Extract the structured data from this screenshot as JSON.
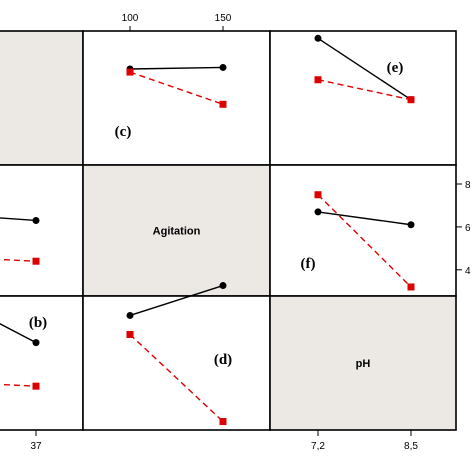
{
  "colors": {
    "background": "#ffffff",
    "panel_fill": "#ece8e3",
    "border": "#000000",
    "series_black": "#000000",
    "series_red": "#dd0000"
  },
  "chart_data": {
    "type": "line",
    "layout": "interaction-plot-matrix",
    "factors": [
      {
        "name": "",
        "levels": [
          "37"
        ],
        "diagonal_label": ""
      },
      {
        "name": "Agitation",
        "levels": [
          "100",
          "150"
        ],
        "diagonal_label": "Agitation"
      },
      {
        "name": "pH",
        "levels": [
          "7,2",
          "8,5"
        ],
        "diagonal_label": "pH"
      }
    ],
    "top_tick_labels": [
      "100",
      "150"
    ],
    "bottom_tick_labels": [
      "37",
      "7,2",
      "8,5"
    ],
    "right_tick_labels": [
      "8",
      "6",
      "4"
    ],
    "panels": [
      {
        "label": "(c)",
        "row": 0,
        "col": 1,
        "x_factor": "Agitation",
        "series": [
          {
            "color": "black",
            "marker": "circle",
            "values": [
              6.6,
              6.7
            ]
          },
          {
            "color": "red",
            "marker": "square",
            "values": [
              6.4,
              4.3
            ]
          }
        ],
        "ylim": [
          2.9,
          8.6
        ]
      },
      {
        "label": "(e)",
        "row": 0,
        "col": 2,
        "x_factor": "pH",
        "series": [
          {
            "color": "black",
            "marker": "circle",
            "values": [
              8.6,
              4.6
            ]
          },
          {
            "color": "red",
            "marker": "square",
            "values": [
              5.9,
              4.6
            ]
          }
        ],
        "ylim": [
          2.9,
          8.6
        ]
      },
      {
        "label": "",
        "row": 1,
        "col": 0,
        "x_factor": "",
        "series": [
          {
            "color": "black",
            "marker": "circle",
            "values": [
              6.3
            ]
          },
          {
            "color": "red",
            "marker": "square",
            "values": [
              4.4
            ]
          }
        ],
        "ylim": [
          2.9,
          8.6
        ]
      },
      {
        "label": "(f)",
        "row": 1,
        "col": 2,
        "x_factor": "pH",
        "series": [
          {
            "color": "black",
            "marker": "circle",
            "values": [
              6.7,
              6.1
            ]
          },
          {
            "color": "red",
            "marker": "square",
            "values": [
              7.5,
              3.2
            ]
          }
        ],
        "ylim": [
          2.9,
          8.6
        ]
      },
      {
        "label": "(b)",
        "row": 2,
        "col": 0,
        "x_factor": "",
        "series": [
          {
            "color": "black",
            "marker": "circle",
            "values": [
              5.2
            ]
          },
          {
            "color": "red",
            "marker": "square",
            "values": [
              3.6
            ]
          }
        ],
        "ylim": [
          2.9,
          8.6
        ]
      },
      {
        "label": "(d)",
        "row": 2,
        "col": 1,
        "x_factor": "Agitation",
        "series": [
          {
            "color": "black",
            "marker": "circle",
            "values": [
              6.2,
              7.3
            ]
          },
          {
            "color": "red",
            "marker": "square",
            "values": [
              5.5,
              2.3
            ]
          }
        ],
        "ylim": [
          1.9,
          8.6
        ]
      }
    ]
  }
}
